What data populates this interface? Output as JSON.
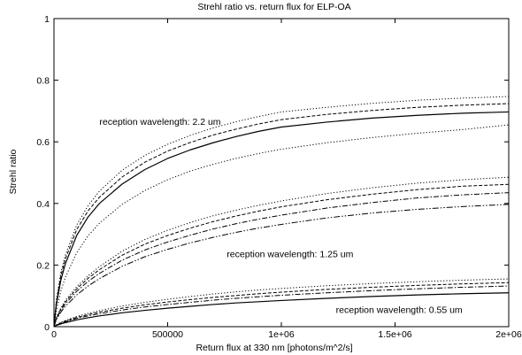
{
  "chart_data": {
    "type": "line",
    "title": "Strehl ratio vs. return flux for ELP-OA",
    "xlabel": "Return flux at 330 nm [photons/m^2/s]",
    "ylabel": "Strehl ratio",
    "xlim": [
      0,
      2000000
    ],
    "ylim": [
      0,
      1
    ],
    "grid": false,
    "x_ticks": [
      {
        "value": 0,
        "label": "0"
      },
      {
        "value": 500000,
        "label": "500000"
      },
      {
        "value": 1000000,
        "label": "1e+06"
      },
      {
        "value": 1500000,
        "label": "1.5e+06"
      },
      {
        "value": 2000000,
        "label": "2e+06"
      }
    ],
    "y_ticks": [
      {
        "value": 0,
        "label": "0"
      },
      {
        "value": 0.2,
        "label": "0.2"
      },
      {
        "value": 0.4,
        "label": "0.4"
      },
      {
        "value": 0.6,
        "label": "0.6"
      },
      {
        "value": 0.8,
        "label": "0.8"
      },
      {
        "value": 1,
        "label": "1"
      }
    ],
    "x": [
      10000,
      30000,
      50000,
      100000,
      150000,
      200000,
      300000,
      400000,
      500000,
      600000,
      700000,
      800000,
      900000,
      1000000,
      1200000,
      1400000,
      1600000,
      1800000,
      2000000
    ],
    "groups": [
      {
        "annotation": "reception wavelength: 2.2 um",
        "annotation_at": {
          "x": 200000,
          "y": 0.655
        },
        "series": [
          {
            "style": "dotted",
            "values": [
              0.085,
              0.175,
              0.232,
              0.33,
              0.393,
              0.44,
              0.508,
              0.556,
              0.592,
              0.621,
              0.645,
              0.665,
              0.682,
              0.697,
              0.712,
              0.725,
              0.735,
              0.742,
              0.747
            ]
          },
          {
            "style": "dashed",
            "values": [
              0.078,
              0.165,
              0.22,
              0.315,
              0.376,
              0.42,
              0.486,
              0.534,
              0.57,
              0.598,
              0.622,
              0.641,
              0.658,
              0.672,
              0.689,
              0.702,
              0.712,
              0.719,
              0.724
            ]
          },
          {
            "style": "solid",
            "values": [
              0.07,
              0.15,
              0.204,
              0.296,
              0.356,
              0.4,
              0.463,
              0.51,
              0.546,
              0.574,
              0.597,
              0.617,
              0.634,
              0.648,
              0.664,
              0.677,
              0.686,
              0.693,
              0.697
            ]
          },
          {
            "style": "dotted",
            "values": [
              0.05,
              0.115,
              0.16,
              0.24,
              0.295,
              0.336,
              0.397,
              0.442,
              0.477,
              0.505,
              0.527,
              0.546,
              0.562,
              0.576,
              0.597,
              0.614,
              0.628,
              0.64,
              0.655
            ]
          }
        ]
      },
      {
        "annotation": "reception wavelength: 1.25 um",
        "annotation_at": {
          "x": 760000,
          "y": 0.225
        },
        "series": [
          {
            "style": "dotted",
            "values": [
              0.028,
              0.06,
              0.085,
              0.13,
              0.165,
              0.195,
              0.245,
              0.283,
              0.313,
              0.338,
              0.36,
              0.378,
              0.394,
              0.408,
              0.432,
              0.451,
              0.466,
              0.477,
              0.485
            ]
          },
          {
            "style": "dashed",
            "values": [
              0.027,
              0.057,
              0.08,
              0.123,
              0.157,
              0.185,
              0.232,
              0.268,
              0.296,
              0.32,
              0.341,
              0.359,
              0.375,
              0.389,
              0.412,
              0.43,
              0.445,
              0.456,
              0.462
            ]
          },
          {
            "style": "dashdot",
            "values": [
              0.025,
              0.053,
              0.074,
              0.115,
              0.147,
              0.173,
              0.216,
              0.249,
              0.275,
              0.297,
              0.317,
              0.334,
              0.349,
              0.362,
              0.385,
              0.403,
              0.418,
              0.428,
              0.435
            ]
          },
          {
            "style": "dashdotdot",
            "values": [
              0.022,
              0.047,
              0.066,
              0.103,
              0.132,
              0.156,
              0.196,
              0.227,
              0.251,
              0.272,
              0.29,
              0.306,
              0.32,
              0.332,
              0.353,
              0.369,
              0.381,
              0.39,
              0.397
            ]
          }
        ]
      },
      {
        "annotation": "reception wavelength: 0.55 um",
        "annotation_at": {
          "x": 1240000,
          "y": 0.045
        },
        "series": [
          {
            "style": "dotted",
            "values": [
              0.006,
              0.014,
              0.02,
              0.033,
              0.043,
              0.052,
              0.067,
              0.079,
              0.089,
              0.098,
              0.106,
              0.113,
              0.119,
              0.124,
              0.133,
              0.14,
              0.146,
              0.151,
              0.155
            ]
          },
          {
            "style": "dashed",
            "values": [
              0.005,
              0.012,
              0.018,
              0.03,
              0.039,
              0.047,
              0.06,
              0.071,
              0.08,
              0.088,
              0.095,
              0.101,
              0.107,
              0.112,
              0.121,
              0.128,
              0.134,
              0.139,
              0.143
            ]
          },
          {
            "style": "dashdot",
            "values": [
              0.005,
              0.011,
              0.016,
              0.027,
              0.035,
              0.042,
              0.054,
              0.064,
              0.072,
              0.079,
              0.086,
              0.092,
              0.097,
              0.102,
              0.11,
              0.117,
              0.123,
              0.128,
              0.132
            ]
          },
          {
            "style": "solid",
            "values": [
              0.004,
              0.009,
              0.013,
              0.022,
              0.029,
              0.035,
              0.045,
              0.053,
              0.06,
              0.066,
              0.072,
              0.077,
              0.081,
              0.085,
              0.092,
              0.098,
              0.103,
              0.107,
              0.11
            ]
          }
        ]
      }
    ]
  }
}
